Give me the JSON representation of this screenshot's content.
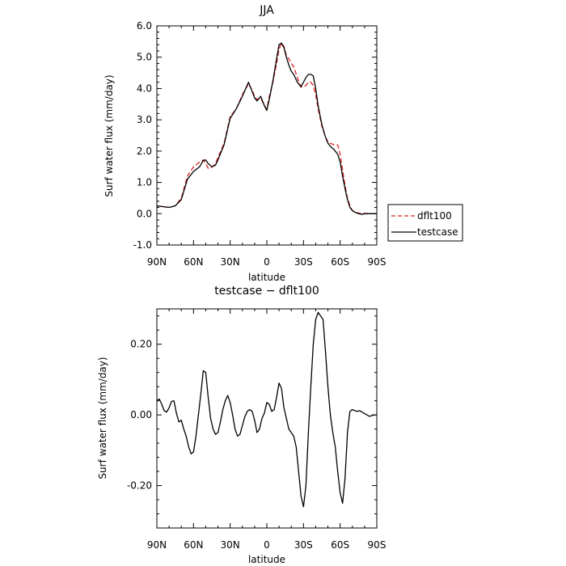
{
  "chart_data": [
    {
      "type": "line",
      "title": "JJA",
      "xlabel": "latitude",
      "ylabel": "Surf water flux (mm/day)",
      "xlim": [
        -90,
        90
      ],
      "ylim": [
        -1.0,
        6.0
      ],
      "x_ticks": [
        "90N",
        "60N",
        "30N",
        "0",
        "30S",
        "60S",
        "90S"
      ],
      "y_ticks": [
        "-1.0",
        "0.0",
        "1.0",
        "2.0",
        "3.0",
        "4.0",
        "5.0",
        "6.0"
      ],
      "legend": {
        "position": "right"
      },
      "series": [
        {
          "name": "dflt100",
          "color": "#dd2222",
          "style": "dashed",
          "x": [
            -90,
            -80,
            -75,
            -70,
            -65,
            -60,
            -55,
            -52,
            -50,
            -48,
            -45,
            -42,
            -40,
            -35,
            -30,
            -25,
            -20,
            -15,
            -12,
            -10,
            -8,
            -5,
            -2,
            0,
            2,
            5,
            8,
            10,
            12,
            14,
            16,
            18,
            20,
            22,
            25,
            28,
            30,
            32,
            34,
            36,
            38,
            40,
            42,
            45,
            48,
            50,
            52,
            55,
            58,
            60,
            62,
            64,
            66,
            68,
            70,
            72,
            75,
            78,
            80,
            85,
            90
          ],
          "y": [
            0.25,
            0.2,
            0.25,
            0.5,
            1.2,
            1.5,
            1.65,
            1.72,
            1.6,
            1.45,
            1.48,
            1.6,
            1.8,
            2.25,
            3.1,
            3.35,
            3.8,
            4.15,
            3.95,
            3.75,
            3.65,
            3.7,
            3.45,
            3.35,
            3.75,
            4.2,
            4.8,
            5.25,
            5.45,
            5.35,
            5.05,
            4.95,
            4.8,
            4.7,
            4.35,
            4.05,
            4.05,
            4.1,
            4.2,
            4.2,
            4.1,
            3.8,
            3.35,
            2.8,
            2.45,
            2.3,
            2.25,
            2.2,
            2.2,
            1.9,
            1.4,
            0.9,
            0.5,
            0.25,
            0.1,
            0.05,
            0.02,
            0.0,
            0.01,
            0.0,
            0.0
          ]
        },
        {
          "name": "testcase",
          "color": "#000000",
          "style": "solid",
          "x": [
            -90,
            -80,
            -75,
            -70,
            -65,
            -60,
            -55,
            -52,
            -50,
            -48,
            -45,
            -42,
            -40,
            -35,
            -30,
            -25,
            -20,
            -15,
            -12,
            -10,
            -8,
            -5,
            -2,
            0,
            2,
            5,
            8,
            10,
            12,
            14,
            16,
            18,
            20,
            22,
            25,
            28,
            30,
            32,
            34,
            36,
            38,
            40,
            42,
            45,
            48,
            50,
            52,
            55,
            58,
            60,
            62,
            64,
            66,
            68,
            70,
            72,
            75,
            78,
            80,
            85,
            90
          ],
          "y": [
            0.25,
            0.2,
            0.25,
            0.45,
            1.1,
            1.35,
            1.5,
            1.7,
            1.72,
            1.6,
            1.5,
            1.55,
            1.72,
            2.2,
            3.05,
            3.35,
            3.75,
            4.2,
            3.9,
            3.7,
            3.6,
            3.75,
            3.45,
            3.3,
            3.65,
            4.25,
            4.95,
            5.4,
            5.45,
            5.3,
            5.0,
            4.75,
            4.55,
            4.45,
            4.2,
            4.05,
            4.2,
            4.35,
            4.45,
            4.45,
            4.4,
            4.0,
            3.45,
            2.85,
            2.45,
            2.25,
            2.15,
            2.05,
            1.9,
            1.65,
            1.2,
            0.8,
            0.45,
            0.2,
            0.1,
            0.05,
            0.0,
            -0.02,
            0.0,
            0.0,
            0.0
          ]
        }
      ]
    },
    {
      "type": "line",
      "title": "testcase − dflt100",
      "xlabel": "latitude",
      "ylabel": "Surf water flux (mm/day)",
      "xlim": [
        -90,
        90
      ],
      "ylim": [
        -0.32,
        0.3
      ],
      "x_ticks": [
        "90N",
        "60N",
        "30N",
        "0",
        "30S",
        "60S",
        "90S"
      ],
      "y_ticks": [
        "-0.20",
        "0.00",
        "0.20"
      ],
      "series": [
        {
          "name": "",
          "color": "#000000",
          "style": "solid",
          "x": [
            -90,
            -88,
            -86,
            -84,
            -82,
            -80,
            -78,
            -76,
            -74,
            -72,
            -70,
            -68,
            -66,
            -64,
            -62,
            -60,
            -58,
            -56,
            -54,
            -52,
            -50,
            -48,
            -46,
            -44,
            -42,
            -40,
            -38,
            -36,
            -34,
            -32,
            -30,
            -28,
            -26,
            -24,
            -22,
            -20,
            -18,
            -16,
            -14,
            -12,
            -10,
            -8,
            -6,
            -4,
            -2,
            0,
            2,
            4,
            6,
            8,
            10,
            12,
            14,
            16,
            18,
            20,
            22,
            24,
            26,
            28,
            30,
            32,
            34,
            36,
            38,
            40,
            42,
            44,
            46,
            48,
            50,
            52,
            54,
            56,
            58,
            60,
            62,
            64,
            66,
            68,
            70,
            72,
            74,
            76,
            78,
            80,
            82,
            84,
            86,
            88,
            90
          ],
          "y": [
            0.04,
            0.045,
            0.03,
            0.012,
            0.008,
            0.02,
            0.038,
            0.04,
            0.005,
            -0.02,
            -0.015,
            -0.04,
            -0.06,
            -0.09,
            -0.11,
            -0.105,
            -0.06,
            0.0,
            0.06,
            0.125,
            0.12,
            0.05,
            -0.01,
            -0.04,
            -0.055,
            -0.05,
            -0.02,
            0.015,
            0.04,
            0.055,
            0.035,
            0.0,
            -0.04,
            -0.06,
            -0.055,
            -0.03,
            -0.005,
            0.01,
            0.015,
            0.01,
            -0.015,
            -0.05,
            -0.04,
            -0.01,
            0.005,
            0.035,
            0.03,
            0.01,
            0.015,
            0.05,
            0.09,
            0.075,
            0.02,
            -0.01,
            -0.04,
            -0.05,
            -0.06,
            -0.09,
            -0.16,
            -0.23,
            -0.26,
            -0.2,
            -0.05,
            0.08,
            0.2,
            0.27,
            0.29,
            0.28,
            0.27,
            0.18,
            0.08,
            0.0,
            -0.05,
            -0.09,
            -0.16,
            -0.22,
            -0.25,
            -0.18,
            -0.05,
            0.01,
            0.015,
            0.012,
            0.01,
            0.012,
            0.008,
            0.004,
            0.0,
            -0.004,
            -0.002,
            0.0,
            0.0
          ]
        }
      ]
    }
  ]
}
